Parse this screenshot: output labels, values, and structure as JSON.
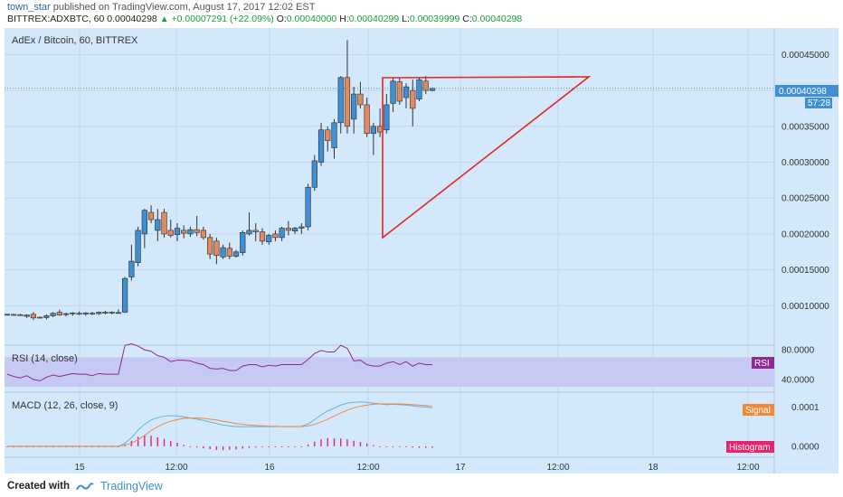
{
  "header": {
    "author": "town_star",
    "published_text": "published on TradingView.com, August 17, 2017 12:02 EST",
    "symbol_interval": "BITTREX:ADXBTC, 60",
    "last": "0.00040298",
    "change_text": "+0.00007291 (+22.09%)",
    "o_label": "O:",
    "o": "0.00040000",
    "h_label": "H:",
    "h": "0.00040299",
    "l_label": "L:",
    "l": "0.00039999",
    "c_label": "C:",
    "c": "0.00040298"
  },
  "footer": {
    "created_with": "Created with",
    "brand": "TradingView"
  },
  "colors": {
    "bg": "#d3e8fb",
    "up": "#3f8fd2",
    "down": "#e08a5e",
    "pattern": "#e5261f",
    "rsi_band": "#c6c9f4",
    "rsi_line": "#8e2b8e",
    "macd_line": "#5ab4e8",
    "signal_line": "#f0883a",
    "histogram": "#e8246c"
  },
  "chart_data": [
    {
      "type": "candlestick",
      "title": "AdEx / Bitcoin, 60, BITTREX",
      "yticks": [
        "0.00045000",
        "0.00040000",
        "0.00035000",
        "0.00030000",
        "0.00025000",
        "0.00020000",
        "0.00015000",
        "0.00010000"
      ],
      "ylim": [
        4.5e-05,
        0.000487
      ],
      "price_label": "0.00040298",
      "countdown_label": "57:28",
      "xticks": [
        "15",
        "12:00",
        "16",
        "12:00",
        "17",
        "12:00",
        "18",
        "12:00"
      ],
      "candles": [
        {
          "t": 0,
          "o": 8.8e-05,
          "h": 8.9e-05,
          "l": 8.7e-05,
          "c": 8.8e-05
        },
        {
          "t": 1,
          "o": 8.78e-05,
          "h": 8.88e-05,
          "l": 8.68e-05,
          "c": 8.75e-05
        },
        {
          "t": 2,
          "o": 8.75e-05,
          "h": 8.9e-05,
          "l": 8.6e-05,
          "c": 8.68e-05
        },
        {
          "t": 3,
          "o": 8.52e-05,
          "h": 8.8e-05,
          "l": 8.3e-05,
          "c": 8.7e-05
        },
        {
          "t": 4,
          "o": 8.8e-05,
          "h": 9.1e-05,
          "l": 8e-05,
          "c": 8.3e-05
        },
        {
          "t": 5,
          "o": 8.4e-05,
          "h": 8.5e-05,
          "l": 8.25e-05,
          "c": 8.3e-05
        },
        {
          "t": 6,
          "o": 8.35e-05,
          "h": 8.8e-05,
          "l": 8.1e-05,
          "c": 8.6e-05
        },
        {
          "t": 7,
          "o": 8.6e-05,
          "h": 9.1e-05,
          "l": 8.4e-05,
          "c": 8.95e-05
        },
        {
          "t": 8,
          "o": 9.1e-05,
          "h": 9.45e-05,
          "l": 8.6e-05,
          "c": 8.7e-05
        },
        {
          "t": 9,
          "o": 8.8e-05,
          "h": 9e-05,
          "l": 8.5e-05,
          "c": 8.9e-05
        },
        {
          "t": 10,
          "o": 8.9e-05,
          "h": 9.1e-05,
          "l": 8.6e-05,
          "c": 9e-05
        },
        {
          "t": 11,
          "o": 8.95e-05,
          "h": 9.2e-05,
          "l": 8.7e-05,
          "c": 8.8e-05
        },
        {
          "t": 12,
          "o": 8.85e-05,
          "h": 9.1e-05,
          "l": 8.6e-05,
          "c": 9e-05
        },
        {
          "t": 13,
          "o": 8.95e-05,
          "h": 9.15e-05,
          "l": 8.7e-05,
          "c": 8.85e-05
        },
        {
          "t": 14,
          "o": 8.9e-05,
          "h": 9.2e-05,
          "l": 8.7e-05,
          "c": 9.1e-05
        },
        {
          "t": 15,
          "o": 9.1e-05,
          "h": 9.3e-05,
          "l": 8.8e-05,
          "c": 8.95e-05
        },
        {
          "t": 16,
          "o": 9e-05,
          "h": 9.2e-05,
          "l": 8.8e-05,
          "c": 9.1e-05
        },
        {
          "t": 17,
          "o": 9.05e-05,
          "h": 9.5e-05,
          "l": 8.9e-05,
          "c": 9.05e-05
        },
        {
          "t": 18,
          "o": 9.1e-05,
          "h": 0.00014,
          "l": 9e-05,
          "c": 0.000138
        },
        {
          "t": 19,
          "o": 0.00014,
          "h": 0.000185,
          "l": 0.000135,
          "c": 0.000162
        },
        {
          "t": 20,
          "o": 0.00016,
          "h": 0.00021,
          "l": 0.000155,
          "c": 0.000205
        },
        {
          "t": 21,
          "o": 0.0002,
          "h": 0.000235,
          "l": 0.00018,
          "c": 0.000233
        },
        {
          "t": 22,
          "o": 0.00023,
          "h": 0.00024,
          "l": 0.000215,
          "c": 0.00022
        },
        {
          "t": 23,
          "o": 0.000205,
          "h": 0.000235,
          "l": 0.00019,
          "c": 0.00022
        },
        {
          "t": 24,
          "o": 0.00023,
          "h": 0.000235,
          "l": 0.000195,
          "c": 0.0002
        },
        {
          "t": 25,
          "o": 0.000205,
          "h": 0.00022,
          "l": 0.000195,
          "c": 0.000198
        },
        {
          "t": 26,
          "o": 0.000199,
          "h": 0.000215,
          "l": 0.00019,
          "c": 0.000208
        },
        {
          "t": 27,
          "o": 0.000205,
          "h": 0.000212,
          "l": 0.000194,
          "c": 0.000201
        },
        {
          "t": 28,
          "o": 0.0002,
          "h": 0.00021,
          "l": 0.000196,
          "c": 0.000206
        },
        {
          "t": 29,
          "o": 0.000206,
          "h": 0.000225,
          "l": 0.000197,
          "c": 0.000202
        },
        {
          "t": 30,
          "o": 0.000205,
          "h": 0.00021,
          "l": 0.000192,
          "c": 0.000195
        },
        {
          "t": 31,
          "o": 0.000195,
          "h": 0.0002,
          "l": 0.000165,
          "c": 0.000172
        },
        {
          "t": 32,
          "o": 0.00019,
          "h": 0.000195,
          "l": 0.000158,
          "c": 0.00017
        },
        {
          "t": 33,
          "o": 0.000168,
          "h": 0.000185,
          "l": 0.000165,
          "c": 0.000181
        },
        {
          "t": 34,
          "o": 0.00018,
          "h": 0.000188,
          "l": 0.000165,
          "c": 0.000169
        },
        {
          "t": 35,
          "o": 0.000169,
          "h": 0.000178,
          "l": 0.000167,
          "c": 0.000175
        },
        {
          "t": 36,
          "o": 0.000174,
          "h": 0.000205,
          "l": 0.00017,
          "c": 0.000202
        },
        {
          "t": 37,
          "o": 0.0002,
          "h": 0.00023,
          "l": 0.000198,
          "c": 0.000205
        },
        {
          "t": 38,
          "o": 0.000205,
          "h": 0.000215,
          "l": 0.00019,
          "c": 0.000203
        },
        {
          "t": 39,
          "o": 0.000203,
          "h": 0.000208,
          "l": 0.000185,
          "c": 0.00019
        },
        {
          "t": 40,
          "o": 0.000189,
          "h": 0.0002,
          "l": 0.000185,
          "c": 0.000198
        },
        {
          "t": 41,
          "o": 0.0002,
          "h": 0.000205,
          "l": 0.00019,
          "c": 0.000195
        },
        {
          "t": 42,
          "o": 0.000195,
          "h": 0.00021,
          "l": 0.00019,
          "c": 0.000208
        },
        {
          "t": 43,
          "o": 0.000208,
          "h": 0.000218,
          "l": 0.000198,
          "c": 0.000205
        },
        {
          "t": 44,
          "o": 0.000204,
          "h": 0.00021,
          "l": 0.0002,
          "c": 0.000208
        },
        {
          "t": 45,
          "o": 0.000208,
          "h": 0.000215,
          "l": 0.0002,
          "c": 0.00021
        },
        {
          "t": 46,
          "o": 0.00021,
          "h": 0.00027,
          "l": 0.000205,
          "c": 0.000265
        },
        {
          "t": 47,
          "o": 0.000265,
          "h": 0.00031,
          "l": 0.00026,
          "c": 0.000302
        },
        {
          "t": 48,
          "o": 0.0003,
          "h": 0.000355,
          "l": 0.000295,
          "c": 0.000345
        },
        {
          "t": 49,
          "o": 0.000345,
          "h": 0.00035,
          "l": 0.000315,
          "c": 0.00033
        },
        {
          "t": 50,
          "o": 0.00032,
          "h": 0.00036,
          "l": 0.000305,
          "c": 0.000355
        },
        {
          "t": 51,
          "o": 0.000355,
          "h": 0.00042,
          "l": 0.00034,
          "c": 0.000418
        },
        {
          "t": 52,
          "o": 0.000418,
          "h": 0.00047,
          "l": 0.00034,
          "c": 0.00035
        },
        {
          "t": 53,
          "o": 0.00036,
          "h": 0.000405,
          "l": 0.00034,
          "c": 0.000395
        },
        {
          "t": 54,
          "o": 0.000395,
          "h": 0.000412,
          "l": 0.000375,
          "c": 0.00038
        },
        {
          "t": 55,
          "o": 0.00038,
          "h": 0.00039,
          "l": 0.000335,
          "c": 0.00034
        },
        {
          "t": 56,
          "o": 0.00034,
          "h": 0.000355,
          "l": 0.00031,
          "c": 0.00035
        },
        {
          "t": 57,
          "o": 0.00035,
          "h": 0.000375,
          "l": 0.000335,
          "c": 0.000342
        },
        {
          "t": 58,
          "o": 0.000345,
          "h": 0.000395,
          "l": 0.00034,
          "c": 0.00038
        },
        {
          "t": 59,
          "o": 0.000382,
          "h": 0.000418,
          "l": 0.00037,
          "c": 0.000413
        },
        {
          "t": 60,
          "o": 0.000412,
          "h": 0.000418,
          "l": 0.00038,
          "c": 0.000385
        },
        {
          "t": 61,
          "o": 0.00039,
          "h": 0.00041,
          "l": 0.000375,
          "c": 0.000405
        },
        {
          "t": 62,
          "o": 0.0004,
          "h": 0.000415,
          "l": 0.00035,
          "c": 0.000375
        },
        {
          "t": 63,
          "o": 0.000388,
          "h": 0.000418,
          "l": 0.000385,
          "c": 0.000415
        },
        {
          "t": 64,
          "o": 0.000413,
          "h": 0.00042,
          "l": 0.000395,
          "c": 0.0004
        },
        {
          "t": 65,
          "o": 0.0004,
          "h": 0.000403,
          "l": 0.000399,
          "c": 0.000403
        }
      ]
    },
    {
      "type": "line",
      "title": "RSI (14, close)",
      "yticks": [
        "80.0000",
        "40.0000"
      ],
      "ylim": [
        24,
        85
      ],
      "label": "RSI",
      "band": [
        30,
        70
      ],
      "values": [
        47,
        44,
        42,
        45,
        40,
        38,
        43,
        46,
        44,
        46,
        48,
        47,
        47,
        45,
        48,
        47,
        47,
        47,
        86,
        88,
        85,
        80,
        78,
        72,
        70,
        64,
        66,
        66,
        65,
        62,
        60,
        55,
        54,
        55,
        52,
        52,
        58,
        60,
        60,
        57,
        59,
        58,
        60,
        60,
        60,
        60,
        67,
        75,
        79,
        77,
        77,
        86,
        82,
        65,
        66,
        60,
        58,
        58,
        62,
        64,
        60,
        64,
        58,
        62,
        60,
        60
      ]
    },
    {
      "type": "line",
      "title": "MACD (12, 26, close, 9)",
      "yticks": [
        "0.0001",
        "0.0000"
      ],
      "ylim": [
        -2.55e-05,
        0.0001355
      ],
      "series": [
        {
          "name": "MACD",
          "values": [
            0,
            0,
            0,
            0,
            0,
            0,
            0,
            0,
            0,
            0,
            0,
            0,
            0,
            0,
            0,
            0,
            0,
            0,
            8e-06,
            2.2e-05,
            4.1e-05,
            5.6e-05,
            6.7e-05,
            7.3e-05,
            7.7e-05,
            7.8e-05,
            7.7e-05,
            7.5e-05,
            7.2e-05,
            6.9e-05,
            6.6e-05,
            6.2e-05,
            5.8e-05,
            5.4e-05,
            5.2e-05,
            5e-05,
            5e-05,
            5e-05,
            5e-05,
            5e-05,
            5e-05,
            5e-05,
            5e-05,
            5e-05,
            5e-05,
            5.1e-05,
            5.7e-05,
            6.8e-05,
            8e-05,
            9e-05,
            9.7e-05,
            0.000105,
            0.00011,
            0.000112,
            0.000113,
            0.000112,
            0.00011,
            0.000108,
            0.000106,
            0.000107,
            0.000106,
            0.000105,
            0.000103,
            0.000101,
            0.0001,
            9.8e-05
          ]
        },
        {
          "name": "Signal",
          "values": [
            0,
            0,
            0,
            0,
            0,
            0,
            0,
            0,
            0,
            0,
            0,
            0,
            0,
            0,
            0,
            0,
            0,
            0,
            3e-06,
            8e-06,
            1.7e-05,
            2.8e-05,
            4e-05,
            5e-05,
            5.8e-05,
            6.4e-05,
            6.8e-05,
            7.1e-05,
            7.2e-05,
            7.2e-05,
            7.1e-05,
            6.9e-05,
            6.7e-05,
            6.4e-05,
            6.1e-05,
            5.8e-05,
            5.6e-05,
            5.4e-05,
            5.3e-05,
            5.2e-05,
            5.1e-05,
            5.1e-05,
            5e-05,
            5e-05,
            5e-05,
            5e-05,
            5.2e-05,
            5.6e-05,
            6.2e-05,
            6.9e-05,
            7.7e-05,
            8.5e-05,
            9.2e-05,
            9.8e-05,
            0.000102,
            0.000105,
            0.000107,
            0.000108,
            0.000108,
            0.000108,
            0.000108,
            0.000107,
            0.000106,
            0.000105,
            0.000104,
            0.000102
          ]
        },
        {
          "name": "Histogram",
          "values": [
            1e-06,
            1e-06,
            1e-06,
            1e-06,
            1e-06,
            1e-06,
            1e-06,
            1e-06,
            1e-06,
            1e-06,
            1e-06,
            1e-06,
            1e-06,
            1e-06,
            1e-06,
            1e-06,
            1e-06,
            1e-06,
            5e-06,
            1.4e-05,
            2.4e-05,
            2.8e-05,
            2.7e-05,
            2.3e-05,
            1.9e-05,
            1.4e-05,
            9e-06,
            4e-06,
            1e-06,
            -3e-06,
            -5e-06,
            -7e-06,
            -9e-06,
            -1e-05,
            -9e-06,
            -8e-06,
            -6e-06,
            -4e-06,
            -3e-06,
            -2e-06,
            -1e-06,
            -1e-06,
            0,
            0,
            0,
            1e-06,
            5e-06,
            1.2e-05,
            1.8e-05,
            2.1e-05,
            2e-05,
            2e-05,
            1.8e-05,
            1.4e-05,
            1.1e-05,
            7e-06,
            3e-06,
            0,
            -2e-06,
            -1e-06,
            -2e-06,
            -2e-06,
            -3e-06,
            -4e-06,
            -4e-06,
            -4e-06
          ]
        }
      ],
      "signal_label": "Signal",
      "histogram_label": "Histogram"
    }
  ]
}
